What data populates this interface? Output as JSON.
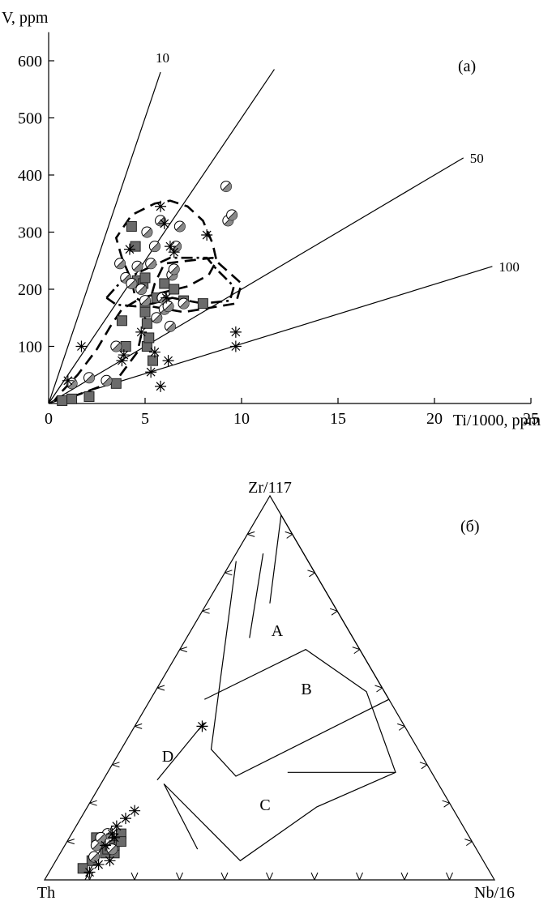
{
  "chart_data": [
    {
      "type": "scatter",
      "panel_label": "(a)",
      "ylabel": "V, ppm",
      "xlabel": "Ti/1000, ppm",
      "xlim": [
        0,
        25
      ],
      "ylim": [
        0,
        650
      ],
      "x_ticks": [
        0,
        5,
        10,
        15,
        20,
        25
      ],
      "y_ticks": [
        100,
        200,
        300,
        400,
        500,
        600
      ],
      "reference_lines": [
        {
          "label": "10",
          "ratio": 10,
          "end": [
            5.8,
            580
          ]
        },
        {
          "label": "",
          "ratio": 20,
          "end": [
            11.7,
            585
          ]
        },
        {
          "label": "50",
          "ratio": 50,
          "end": [
            21.5,
            430
          ]
        },
        {
          "label": "100",
          "ratio": 100,
          "end": [
            23.0,
            240
          ]
        }
      ],
      "fields": [
        {
          "style": "dashed",
          "points": [
            [
              0.3,
              5
            ],
            [
              1.5,
              15
            ],
            [
              3.5,
              40
            ],
            [
              4.6,
              90
            ],
            [
              5,
              150
            ],
            [
              5.5,
              210
            ],
            [
              6,
              245
            ],
            [
              8.5,
              255
            ],
            [
              10,
              210
            ],
            [
              9.7,
              175
            ],
            [
              7,
              160
            ],
            [
              5.3,
              170
            ],
            [
              4.5,
              185
            ],
            [
              4.3,
              215
            ],
            [
              3.8,
              255
            ],
            [
              3.5,
              290
            ],
            [
              4.3,
              330
            ],
            [
              5.5,
              350
            ],
            [
              6.3,
              355
            ],
            [
              7.2,
              345
            ],
            [
              8,
              320
            ],
            [
              8.5,
              280
            ],
            [
              8.7,
              250
            ],
            [
              8.3,
              225
            ],
            [
              7.2,
              205
            ],
            [
              6,
              195
            ],
            [
              4.8,
              185
            ],
            [
              3.8,
              165
            ],
            [
              3.2,
              135
            ],
            [
              2.5,
              95
            ],
            [
              1.5,
              50
            ],
            [
              0.6,
              18
            ],
            [
              0.3,
              5
            ]
          ]
        },
        {
          "style": "dashdot",
          "points": [
            [
              3,
              185
            ],
            [
              3.8,
              215
            ],
            [
              5.2,
              238
            ],
            [
              6.3,
              255
            ],
            [
              8.2,
              255
            ],
            [
              8.7,
              235
            ],
            [
              9.6,
              205
            ],
            [
              9.4,
              180
            ],
            [
              8,
              175
            ],
            [
              6.4,
              185
            ],
            [
              5.4,
              175
            ],
            [
              4.5,
              170
            ],
            [
              3.5,
              173
            ],
            [
              3,
              185
            ]
          ]
        }
      ],
      "series": [
        {
          "marker": "gray-square",
          "points": [
            [
              0.7,
              5
            ],
            [
              1.2,
              8
            ],
            [
              2.1,
              12
            ],
            [
              3.5,
              35
            ],
            [
              4.0,
              100
            ],
            [
              4.3,
              310
            ],
            [
              4.5,
              275
            ],
            [
              4.6,
              215
            ],
            [
              4.9,
              210
            ],
            [
              5.0,
              220
            ],
            [
              5.0,
              175
            ],
            [
              5.0,
              160
            ],
            [
              5.1,
              140
            ],
            [
              5.1,
              100
            ],
            [
              5.2,
              115
            ],
            [
              5.4,
              75
            ],
            [
              5.6,
              185
            ],
            [
              6.0,
              210
            ],
            [
              6.5,
              200
            ],
            [
              7.0,
              180
            ],
            [
              8.0,
              175
            ],
            [
              3.8,
              145
            ]
          ]
        },
        {
          "marker": "half-filled-circle",
          "points": [
            [
              1.2,
              35
            ],
            [
              2.1,
              45
            ],
            [
              3.0,
              40
            ],
            [
              3.5,
              100
            ],
            [
              3.7,
              245
            ],
            [
              4.0,
              220
            ],
            [
              4.3,
              210
            ],
            [
              4.6,
              240
            ],
            [
              4.8,
              200
            ],
            [
              5.0,
              180
            ],
            [
              5.1,
              300
            ],
            [
              5.3,
              245
            ],
            [
              5.5,
              275
            ],
            [
              5.6,
              150
            ],
            [
              5.8,
              320
            ],
            [
              5.9,
              185
            ],
            [
              6.0,
              165
            ],
            [
              6.2,
              170
            ],
            [
              6.3,
              135
            ],
            [
              6.4,
              225
            ],
            [
              6.5,
              235
            ],
            [
              6.6,
              275
            ],
            [
              6.8,
              310
            ],
            [
              7.0,
              175
            ],
            [
              9.2,
              380
            ],
            [
              9.3,
              320
            ],
            [
              9.5,
              330
            ]
          ]
        },
        {
          "marker": "asterisk",
          "points": [
            [
              1.0,
              40
            ],
            [
              1.7,
              100
            ],
            [
              3.8,
              75
            ],
            [
              3.9,
              85
            ],
            [
              4.2,
              270
            ],
            [
              4.8,
              125
            ],
            [
              5.3,
              55
            ],
            [
              5.5,
              90
            ],
            [
              5.8,
              30
            ],
            [
              5.8,
              345
            ],
            [
              6.0,
              315
            ],
            [
              6.1,
              185
            ],
            [
              6.2,
              75
            ],
            [
              6.3,
              275
            ],
            [
              6.5,
              265
            ],
            [
              8.2,
              295
            ],
            [
              9.7,
              125
            ],
            [
              9.7,
              100
            ]
          ]
        }
      ]
    },
    {
      "type": "ternary",
      "panel_label": "(б)",
      "vertices": {
        "top": "Zr/117",
        "left": "Th",
        "right": "Nb/16"
      },
      "field_labels": [
        "A",
        "B",
        "C",
        "D"
      ],
      "fields": [
        {
          "points": [
            [
              0.72,
              0.14,
              0.14
            ],
            [
              0.95,
              0.0,
              0.05
            ],
            [
              0.47,
              0.0,
              0.53
            ],
            [
              0.27,
              0.44,
              0.29
            ],
            [
              0.34,
              0.46,
              0.2
            ],
            [
              0.83,
              0.16,
              0.01
            ]
          ]
        },
        {
          "points": [
            [
              0.63,
              0.23,
              0.14
            ],
            [
              0.85,
              0.09,
              0.06
            ]
          ]
        },
        {
          "points": [
            [
              0.41,
              0.44,
              0.15
            ],
            [
              0.26,
              0.62,
              0.12
            ]
          ]
        },
        {
          "points": [
            [
              0.47,
              0.41,
              0.12
            ],
            [
              0.6,
              0.12,
              0.28
            ],
            [
              0.49,
              0.04,
              0.47
            ],
            [
              0.28,
              0.08,
              0.64
            ],
            [
              0.19,
              0.3,
              0.51
            ],
            [
              0.05,
              0.54,
              0.41
            ],
            [
              0.25,
              0.61,
              0.14
            ]
          ]
        },
        {
          "points": [
            [
              0.25,
              0.61,
              0.14
            ],
            [
              0.08,
              0.62,
              0.3
            ]
          ]
        },
        {
          "points": [
            [
              0.28,
              0.08,
              0.64
            ],
            [
              0.28,
              0.32,
              0.4
            ]
          ]
        },
        {
          "points": [
            [
              0.14,
              0.78,
              0.08
            ],
            [
              0.0,
              0.91,
              0.09
            ]
          ]
        }
      ],
      "series": [
        {
          "marker": "gray-square",
          "points": [
            [
              0.07,
              0.83,
              0.1
            ],
            [
              0.1,
              0.79,
              0.11
            ],
            [
              0.07,
              0.81,
              0.12
            ],
            [
              0.11,
              0.83,
              0.06
            ],
            [
              0.05,
              0.87,
              0.08
            ],
            [
              0.12,
              0.77,
              0.11
            ],
            [
              0.03,
              0.9,
              0.07
            ],
            [
              0.08,
              0.82,
              0.1
            ],
            [
              0.09,
              0.8,
              0.11
            ],
            [
              0.1,
              0.78,
              0.12
            ]
          ]
        },
        {
          "marker": "half-filled-circle",
          "points": [
            [
              0.12,
              0.8,
              0.08
            ],
            [
              0.09,
              0.84,
              0.07
            ],
            [
              0.06,
              0.86,
              0.08
            ],
            [
              0.08,
              0.81,
              0.11
            ],
            [
              0.11,
              0.82,
              0.07
            ]
          ]
        },
        {
          "marker": "asterisk",
          "points": [
            [
              0.4,
              0.45,
              0.15
            ],
            [
              0.18,
              0.71,
              0.11
            ],
            [
              0.16,
              0.74,
              0.1
            ],
            [
              0.14,
              0.77,
              0.09
            ],
            [
              0.12,
              0.79,
              0.09
            ],
            [
              0.11,
              0.79,
              0.1
            ],
            [
              0.09,
              0.82,
              0.09
            ],
            [
              0.05,
              0.83,
              0.12
            ],
            [
              0.04,
              0.86,
              0.1
            ],
            [
              0.02,
              0.89,
              0.09
            ]
          ]
        }
      ]
    }
  ]
}
